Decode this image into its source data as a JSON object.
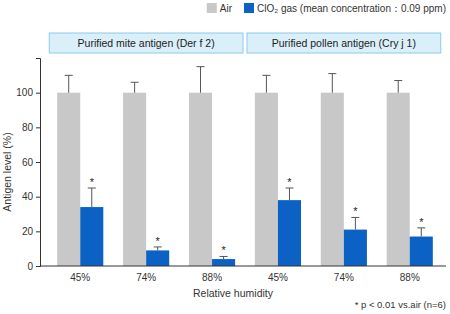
{
  "chart_data": {
    "type": "bar",
    "y_label": "Antigen level (%)",
    "x_label": "Relative humidity",
    "categories": [
      "45%",
      "74%",
      "88%",
      "45%",
      "74%",
      "88%"
    ],
    "groups": [
      {
        "label": "Purified mite antigen (Der f 2)",
        "span": 3
      },
      {
        "label": "Purified pollen antigen (Cry j 1)",
        "span": 3
      }
    ],
    "series": [
      {
        "name": "Air",
        "color": "#c8c8c8",
        "values": [
          100,
          100,
          100,
          100,
          100,
          100
        ],
        "errors": [
          10,
          6,
          15,
          10,
          11,
          7
        ]
      },
      {
        "name": "ClO₂ gas (mean concentration：0.09 ppm)",
        "color": "#0b62c4",
        "values": [
          34,
          9,
          4,
          38,
          21,
          17
        ],
        "errors": [
          11,
          2,
          1.5,
          7,
          7,
          5
        ],
        "significance": [
          "*",
          "*",
          "*",
          "*",
          "*",
          "*"
        ]
      }
    ],
    "ylim": [
      0,
      120
    ],
    "yticks": [
      0,
      20,
      40,
      60,
      80,
      100
    ],
    "grid": false,
    "legend": "top-right",
    "footnote": "* p < 0.01 vs.air (n=6)"
  }
}
